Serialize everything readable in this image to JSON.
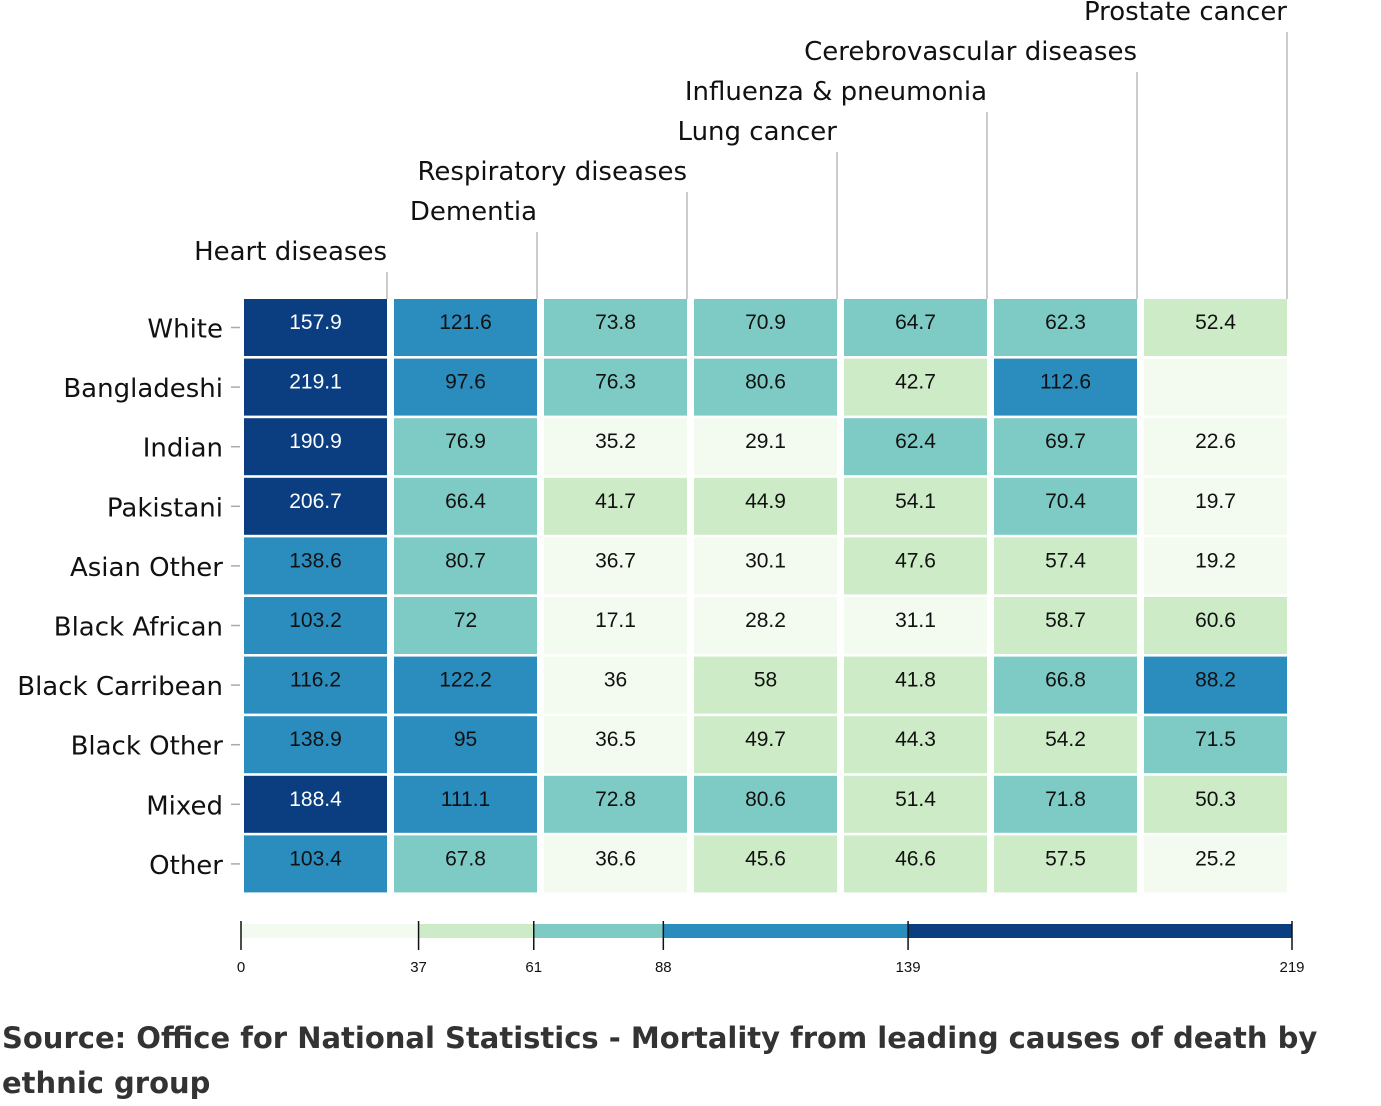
{
  "chart_data": {
    "type": "heatmap",
    "columns": [
      "Heart diseases",
      "Dementia",
      "Respiratory diseases",
      "Lung cancer",
      "Influenza & pneumonia",
      "Cerebrovascular diseases",
      "Prostate cancer"
    ],
    "rows": [
      "White",
      "Bangladeshi",
      "Indian",
      "Pakistani",
      "Asian Other",
      "Black African",
      "Black Carribean",
      "Black Other",
      "Mixed",
      "Other"
    ],
    "values": [
      [
        157.9,
        121.6,
        73.8,
        70.9,
        64.7,
        62.3,
        52.4
      ],
      [
        219.1,
        97.6,
        76.3,
        80.6,
        42.7,
        112.6,
        null
      ],
      [
        190.9,
        76.9,
        35.2,
        29.1,
        62.4,
        69.7,
        22.6
      ],
      [
        206.7,
        66.4,
        41.7,
        44.9,
        54.1,
        70.4,
        19.7
      ],
      [
        138.6,
        80.7,
        36.7,
        30.1,
        47.6,
        57.4,
        19.2
      ],
      [
        103.2,
        72,
        17.1,
        28.2,
        31.1,
        58.7,
        60.6
      ],
      [
        116.2,
        122.2,
        36,
        58,
        41.8,
        66.8,
        88.2
      ],
      [
        138.9,
        95,
        36.5,
        49.7,
        44.3,
        54.2,
        71.5
      ],
      [
        188.4,
        111.1,
        72.8,
        80.6,
        51.4,
        71.8,
        50.3
      ],
      [
        103.4,
        67.8,
        36.6,
        45.6,
        46.6,
        57.5,
        25.2
      ]
    ],
    "legend": {
      "thresholds": [
        0,
        37,
        61,
        88,
        139,
        219
      ],
      "tick_labels": [
        "0",
        "37",
        "61",
        "88",
        "139",
        "219"
      ],
      "colors": [
        "#f3faef",
        "#cdebc6",
        "#7ecbc5",
        "#2b8cbe",
        "#0a3e80"
      ]
    }
  },
  "source_text": "Source: Office for National Statistics - Mortality from leading causes of death by ethnic group"
}
